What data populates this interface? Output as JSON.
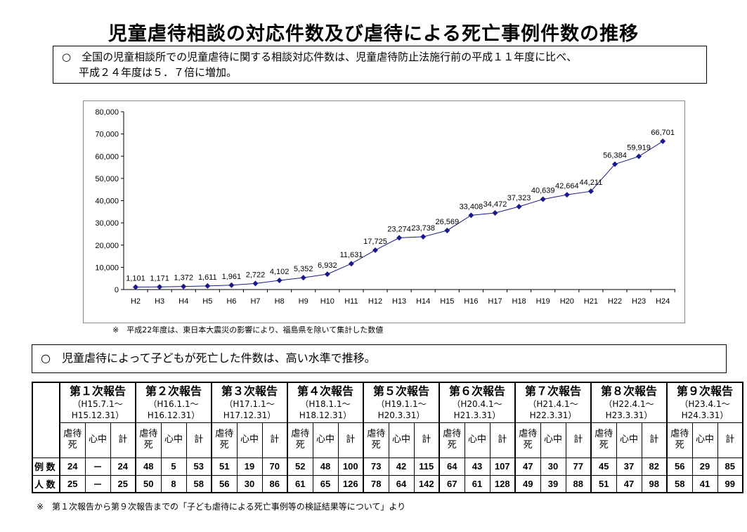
{
  "title": "児童虐待相談の対応件数及び虐待による死亡事例件数の推移",
  "box1": {
    "line1": "○　全国の児童相談所での児童虐待に関する相談対応件数は、児童虐待防止法施行前の平成１１年度に比べ、",
    "line2": "平成２４年度は５．７倍に増加。"
  },
  "chart_data": {
    "type": "line",
    "title": "",
    "xlabel": "",
    "ylabel": "",
    "ylim": [
      0,
      80000
    ],
    "yticks": [
      "0",
      "10,000",
      "20,000",
      "30,000",
      "40,000",
      "50,000",
      "60,000",
      "70,000",
      "80,000"
    ],
    "categories": [
      "H2",
      "H3",
      "H4",
      "H5",
      "H6",
      "H7",
      "H8",
      "H9",
      "H10",
      "H11",
      "H12",
      "H13",
      "H14",
      "H15",
      "H16",
      "H17",
      "H18",
      "H19",
      "H20",
      "H21",
      "H22",
      "H23",
      "H24"
    ],
    "values": [
      1101,
      1171,
      1372,
      1611,
      1961,
      2722,
      4102,
      5352,
      6932,
      11631,
      17725,
      23274,
      23738,
      26569,
      33408,
      34472,
      37323,
      40639,
      42664,
      44211,
      56384,
      59919,
      66701
    ],
    "labels": [
      "1,101",
      "1,171",
      "1,372",
      "1,611",
      "1,961",
      "2,722",
      "4,102",
      "5,352",
      "6,932",
      "11,631",
      "17,725",
      "23,274",
      "23,738",
      "26,569",
      "33,408",
      "34,472",
      "37,323",
      "40,639",
      "42,664",
      "44,211",
      "56,384",
      "59,919",
      "66,701"
    ],
    "line_color": "#1a1a8c",
    "grid": false
  },
  "note": "※　平成22年度は、東日本大震災の影響により、福島県を除いて集計した数値",
  "box2": "○　児童虐待によって子どもが死亡した件数は、高い水準で推移。",
  "table": {
    "subheaders": [
      "虐待死",
      "心中",
      "計"
    ],
    "row_labels": [
      "例 数",
      "人 数"
    ],
    "reports": [
      {
        "name": "第１次報告",
        "period1": "（H15.7.1～",
        "period2": "H15.12.31）",
        "cases": [
          "24",
          "－",
          "24"
        ],
        "persons": [
          "25",
          "－",
          "25"
        ]
      },
      {
        "name": "第２次報告",
        "period1": "（H16.1.1～",
        "period2": "H16.12.31）",
        "cases": [
          "48",
          "5",
          "53"
        ],
        "persons": [
          "50",
          "8",
          "58"
        ]
      },
      {
        "name": "第３次報告",
        "period1": "（H17.1.1～",
        "period2": "H17.12.31）",
        "cases": [
          "51",
          "19",
          "70"
        ],
        "persons": [
          "56",
          "30",
          "86"
        ]
      },
      {
        "name": "第４次報告",
        "period1": "（H18.1.1～",
        "period2": "H18.12.31）",
        "cases": [
          "52",
          "48",
          "100"
        ],
        "persons": [
          "61",
          "65",
          "126"
        ]
      },
      {
        "name": "第５次報告",
        "period1": "（H19.1.1～",
        "period2": "H20.3.31）",
        "cases": [
          "73",
          "42",
          "115"
        ],
        "persons": [
          "78",
          "64",
          "142"
        ]
      },
      {
        "name": "第６次報告",
        "period1": "（H20.4.1～",
        "period2": "H21.3.31）",
        "cases": [
          "64",
          "43",
          "107"
        ],
        "persons": [
          "67",
          "61",
          "128"
        ]
      },
      {
        "name": "第７次報告",
        "period1": "（H21.4.1～",
        "period2": "H22.3.31）",
        "cases": [
          "47",
          "30",
          "77"
        ],
        "persons": [
          "49",
          "39",
          "88"
        ]
      },
      {
        "name": "第８次報告",
        "period1": "（H22.4.1～",
        "period2": "H23.3.31）",
        "cases": [
          "45",
          "37",
          "82"
        ],
        "persons": [
          "51",
          "47",
          "98"
        ]
      },
      {
        "name": "第９次報告",
        "period1": "（H23.4.1～",
        "period2": "H24.3.31）",
        "cases": [
          "56",
          "29",
          "85"
        ],
        "persons": [
          "58",
          "41",
          "99"
        ]
      }
    ]
  },
  "footnote": "※　第１次報告から第９次報告までの「子ども虐待による死亡事例等の検証結果等について」より"
}
